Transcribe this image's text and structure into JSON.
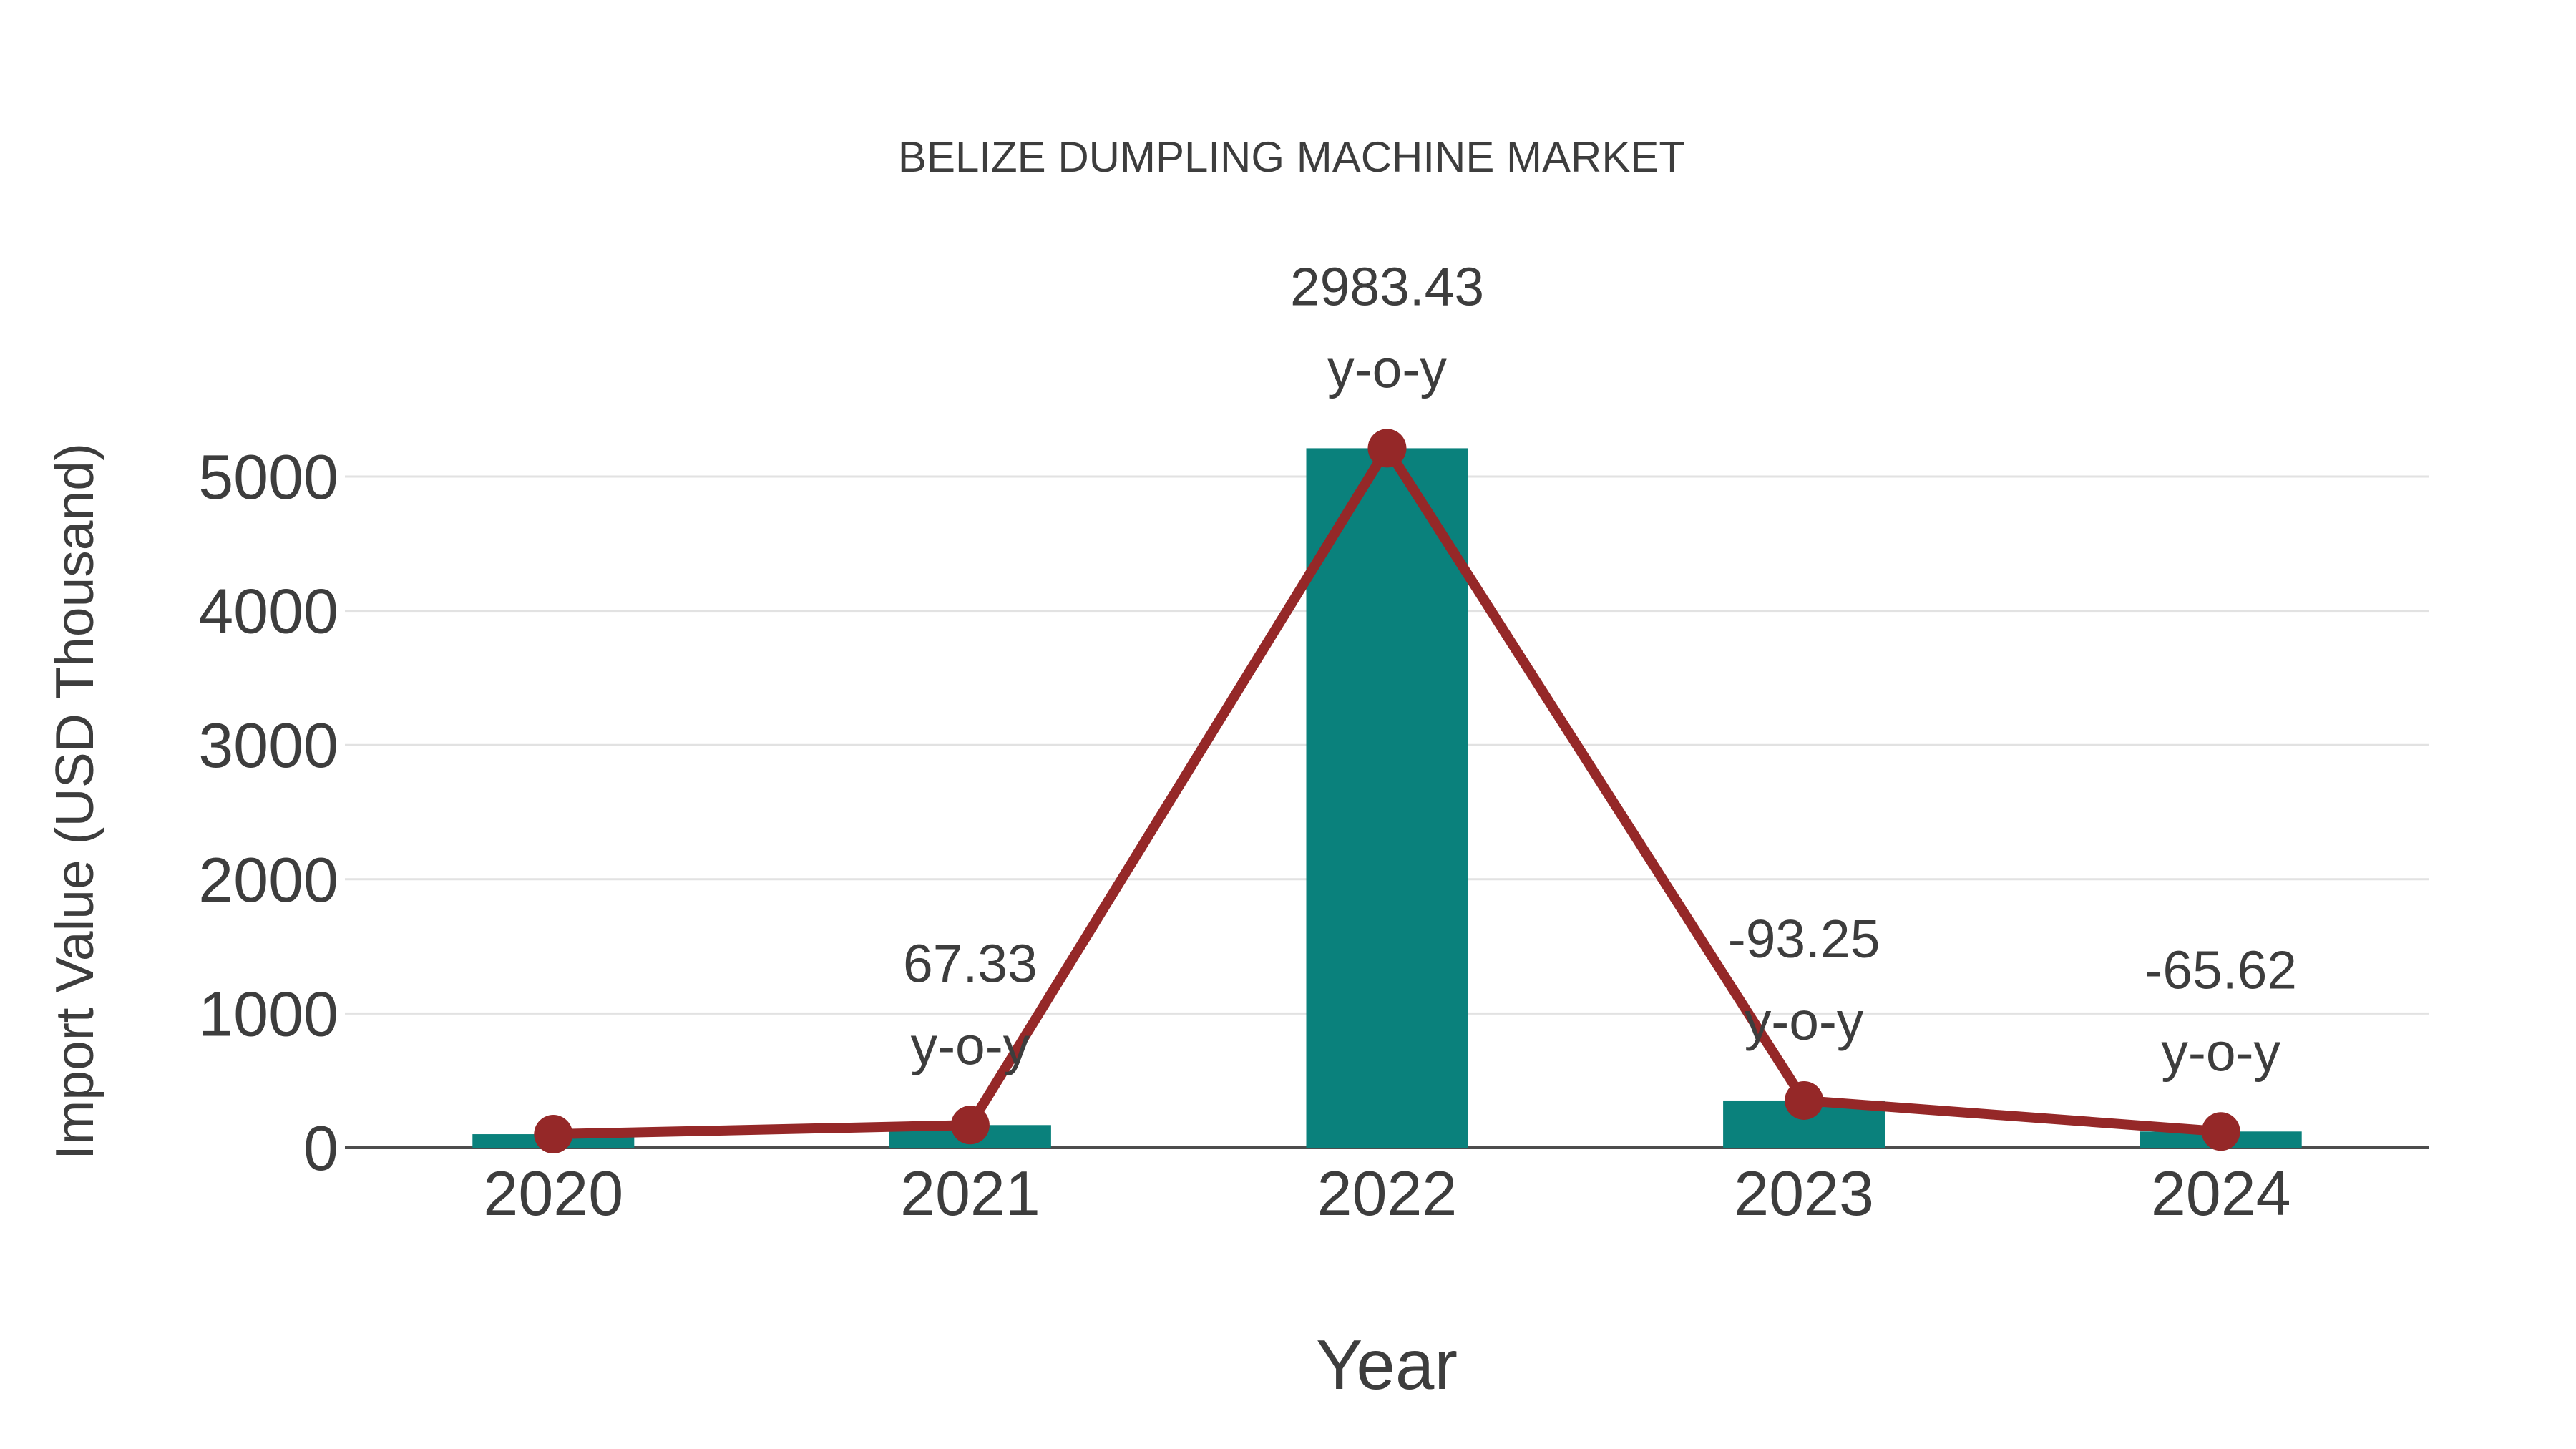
{
  "chart_data": {
    "type": "bar+line",
    "title": "BELIZE DUMPLING MACHINE MARKET",
    "xlabel": "Year",
    "ylabel": "Import Value (USD Thousand)",
    "categories": [
      "2020",
      "2021",
      "2022",
      "2023",
      "2024"
    ],
    "series": [
      {
        "name": "Import Value",
        "type": "bar",
        "color": "#0a817c",
        "values": [
          101,
          169,
          5211,
          352,
          121
        ]
      },
      {
        "name": "Trend",
        "type": "line",
        "color": "#952828",
        "values": [
          101,
          169,
          5211,
          352,
          121
        ]
      }
    ],
    "yoy_values": [
      null,
      "67.33",
      "2983.43",
      "-93.25",
      "-65.62"
    ],
    "yoy_suffix": "y-o-y",
    "yticks": [
      0,
      1000,
      2000,
      3000,
      4000,
      5000
    ],
    "ylim": [
      0,
      5500
    ],
    "grid": "horizontal",
    "legend": "none",
    "colors": {
      "bar": "#0a817c",
      "line": "#952828",
      "text": "#3d3d3d",
      "grid": "#e2e2e2",
      "axis": "#4d4d4d",
      "background": "#ffffff"
    }
  }
}
